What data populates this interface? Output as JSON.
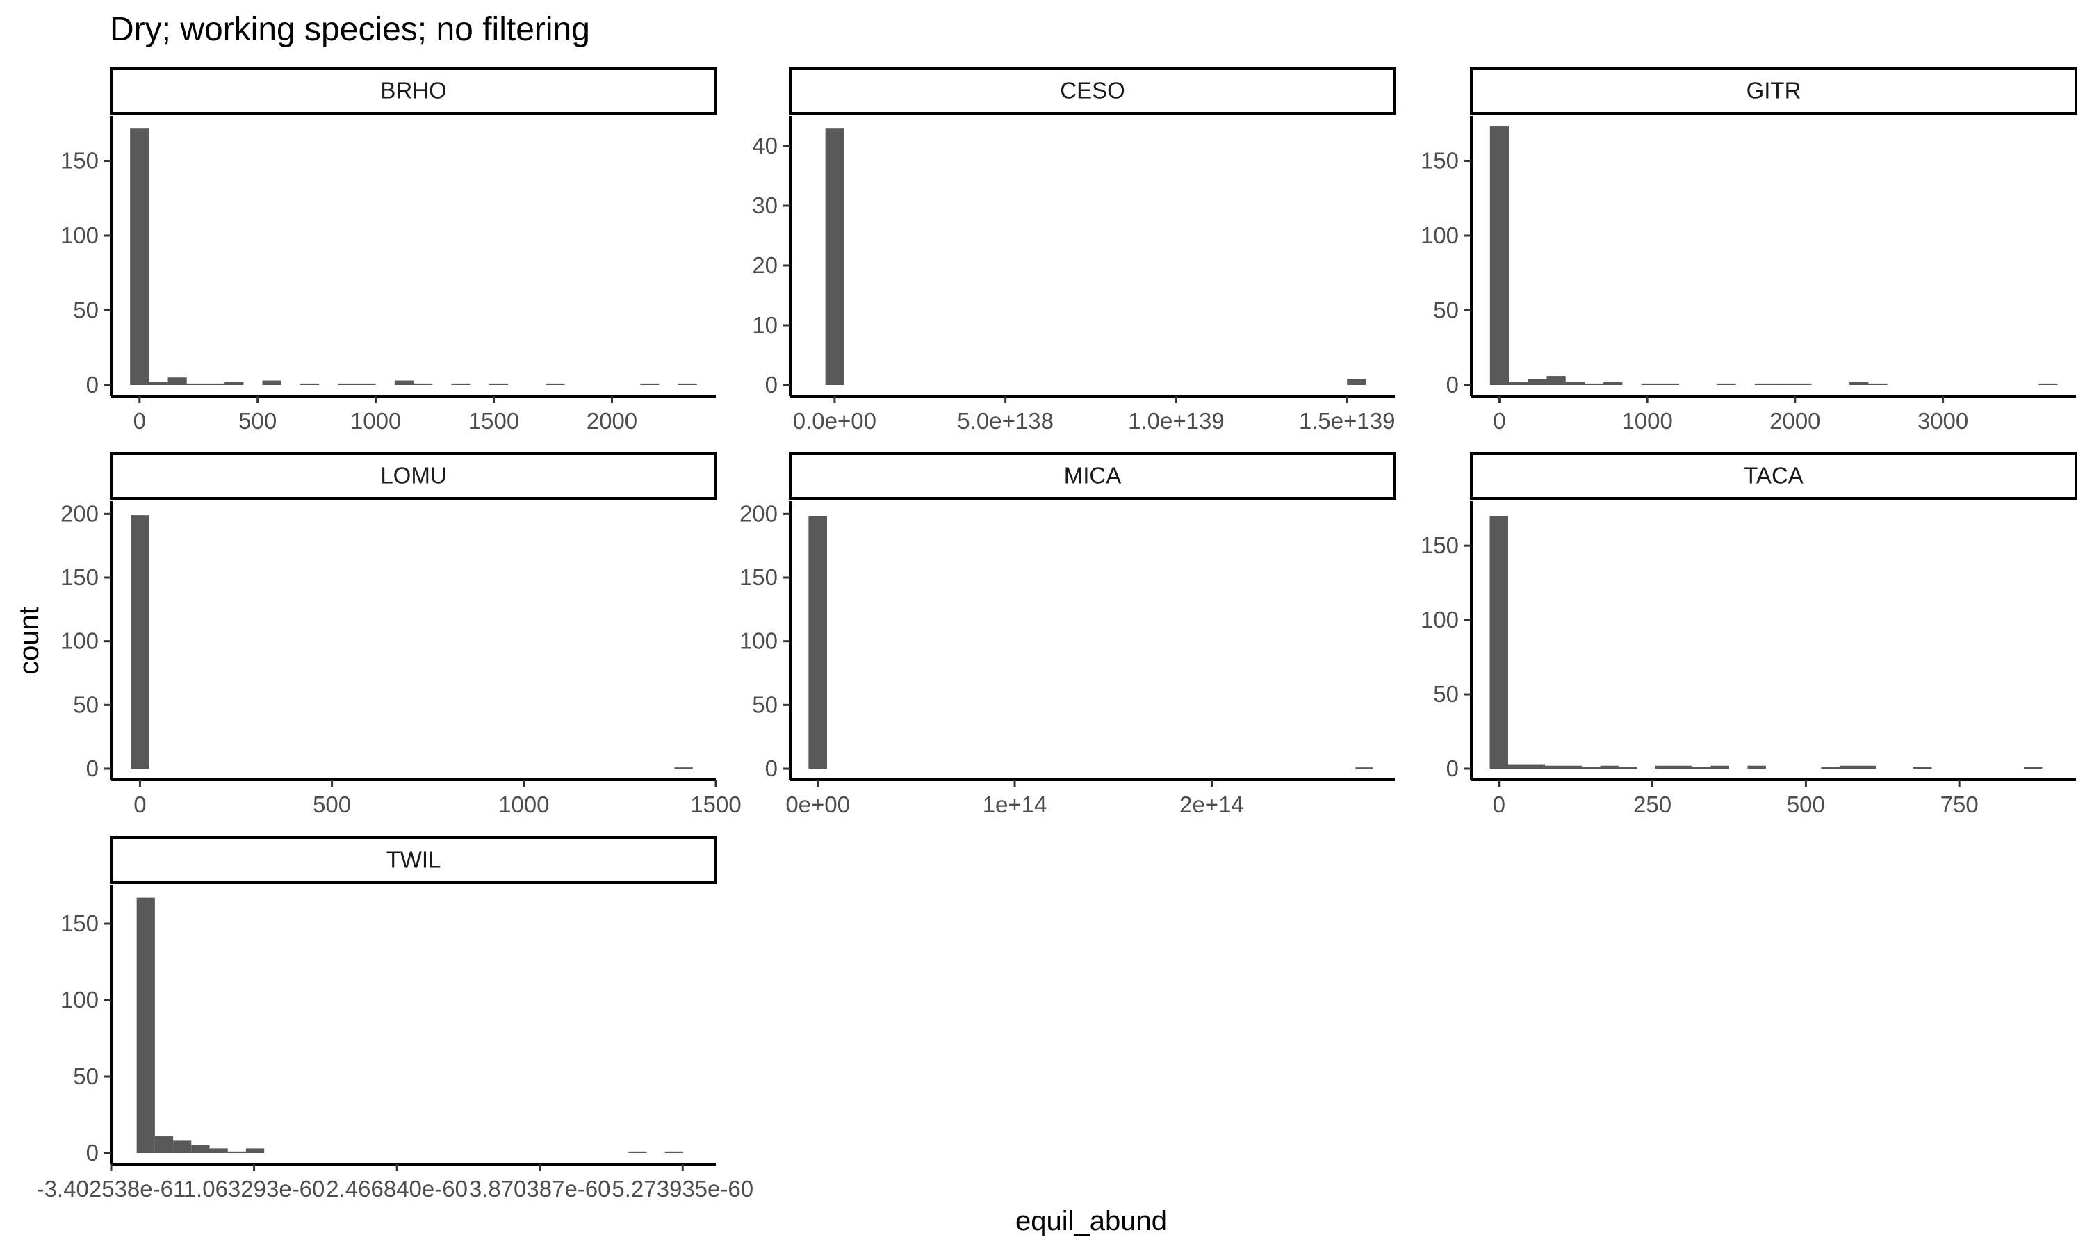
{
  "chart_data": {
    "type": "bar",
    "title": "Dry; working species; no filtering",
    "xlabel": "equil_abund",
    "ylabel": "count",
    "bar_color": "#595959",
    "panels": [
      {
        "name": "BRHO",
        "xlim": [
          -120,
          2440
        ],
        "ylim": [
          0,
          180
        ],
        "xticks": [
          {
            "value": 0,
            "label": "0"
          },
          {
            "value": 500,
            "label": "500"
          },
          {
            "value": 1000,
            "label": "1000"
          },
          {
            "value": 1500,
            "label": "1500"
          },
          {
            "value": 2000,
            "label": "2000"
          }
        ],
        "yticks": [
          {
            "value": 0,
            "label": "0"
          },
          {
            "value": 50,
            "label": "50"
          },
          {
            "value": 100,
            "label": "100"
          },
          {
            "value": 150,
            "label": "150"
          }
        ],
        "bars": [
          {
            "x0": -40,
            "x1": 40,
            "count": 172
          },
          {
            "x0": 40,
            "x1": 120,
            "count": 2
          },
          {
            "x0": 120,
            "x1": 200,
            "count": 5
          },
          {
            "x0": 200,
            "x1": 280,
            "count": 1
          },
          {
            "x0": 280,
            "x1": 360,
            "count": 1
          },
          {
            "x0": 360,
            "x1": 440,
            "count": 2
          },
          {
            "x0": 520,
            "x1": 600,
            "count": 3
          },
          {
            "x0": 680,
            "x1": 760,
            "count": 1
          },
          {
            "x0": 840,
            "x1": 920,
            "count": 1
          },
          {
            "x0": 920,
            "x1": 1000,
            "count": 1
          },
          {
            "x0": 1080,
            "x1": 1160,
            "count": 3
          },
          {
            "x0": 1160,
            "x1": 1240,
            "count": 1
          },
          {
            "x0": 1320,
            "x1": 1400,
            "count": 1
          },
          {
            "x0": 1480,
            "x1": 1560,
            "count": 1
          },
          {
            "x0": 1720,
            "x1": 1800,
            "count": 1
          },
          {
            "x0": 2120,
            "x1": 2200,
            "count": 1
          },
          {
            "x0": 2280,
            "x1": 2360,
            "count": 1
          }
        ]
      },
      {
        "name": "CESO",
        "xlim": [
          -1.3e+138,
          1.64e+139
        ],
        "ylim": [
          0,
          45
        ],
        "xticks": [
          {
            "value": 0,
            "label": "0.0e+00"
          },
          {
            "value": 5e+138,
            "label": "5.0e+138"
          },
          {
            "value": 1e+139,
            "label": "1.0e+139"
          },
          {
            "value": 1.5e+139,
            "label": "1.5e+139"
          }
        ],
        "yticks": [
          {
            "value": 0,
            "label": "0"
          },
          {
            "value": 10,
            "label": "10"
          },
          {
            "value": 20,
            "label": "20"
          },
          {
            "value": 30,
            "label": "30"
          },
          {
            "value": 40,
            "label": "40"
          }
        ],
        "bars": [
          {
            "x0": -2.7e+137,
            "x1": 2.7e+137,
            "count": 43
          },
          {
            "x0": 1.5e+139,
            "x1": 1.555e+139,
            "count": 1
          }
        ]
      },
      {
        "name": "GITR",
        "xlim": [
          -190,
          3900
        ],
        "ylim": [
          0,
          180
        ],
        "xticks": [
          {
            "value": 0,
            "label": "0"
          },
          {
            "value": 1000,
            "label": "1000"
          },
          {
            "value": 2000,
            "label": "2000"
          },
          {
            "value": 3000,
            "label": "3000"
          }
        ],
        "yticks": [
          {
            "value": 0,
            "label": "0"
          },
          {
            "value": 50,
            "label": "50"
          },
          {
            "value": 100,
            "label": "100"
          },
          {
            "value": 150,
            "label": "150"
          }
        ],
        "bars": [
          {
            "x0": -64,
            "x1": 64,
            "count": 173
          },
          {
            "x0": 64,
            "x1": 192,
            "count": 2
          },
          {
            "x0": 192,
            "x1": 320,
            "count": 4
          },
          {
            "x0": 320,
            "x1": 448,
            "count": 6
          },
          {
            "x0": 448,
            "x1": 576,
            "count": 2
          },
          {
            "x0": 576,
            "x1": 704,
            "count": 1
          },
          {
            "x0": 704,
            "x1": 832,
            "count": 2
          },
          {
            "x0": 960,
            "x1": 1088,
            "count": 1
          },
          {
            "x0": 1088,
            "x1": 1216,
            "count": 1
          },
          {
            "x0": 1472,
            "x1": 1600,
            "count": 1
          },
          {
            "x0": 1728,
            "x1": 1856,
            "count": 1
          },
          {
            "x0": 1856,
            "x1": 1984,
            "count": 1
          },
          {
            "x0": 1984,
            "x1": 2112,
            "count": 1
          },
          {
            "x0": 2368,
            "x1": 2496,
            "count": 2
          },
          {
            "x0": 2496,
            "x1": 2624,
            "count": 1
          },
          {
            "x0": 3648,
            "x1": 3776,
            "count": 1
          }
        ]
      },
      {
        "name": "LOMU",
        "xlim": [
          -75,
          1500
        ],
        "ylim": [
          0,
          210
        ],
        "xticks": [
          {
            "value": 0,
            "label": "0"
          },
          {
            "value": 500,
            "label": "500"
          },
          {
            "value": 1000,
            "label": "1000"
          },
          {
            "value": 1500,
            "label": "1500"
          }
        ],
        "yticks": [
          {
            "value": 0,
            "label": "0"
          },
          {
            "value": 50,
            "label": "50"
          },
          {
            "value": 100,
            "label": "100"
          },
          {
            "value": 150,
            "label": "150"
          },
          {
            "value": 200,
            "label": "200"
          }
        ],
        "bars": [
          {
            "x0": -24,
            "x1": 24,
            "count": 199
          },
          {
            "x0": 1392,
            "x1": 1440,
            "count": 1
          }
        ]
      },
      {
        "name": "MICA",
        "xlim": [
          -14000000000000.0,
          293000000000000.0
        ],
        "ylim": [
          0,
          210
        ],
        "xticks": [
          {
            "value": 0,
            "label": "0e+00"
          },
          {
            "value": 100000000000000.0,
            "label": "1e+14"
          },
          {
            "value": 200000000000000.0,
            "label": "2e+14"
          }
        ],
        "yticks": [
          {
            "value": 0,
            "label": "0"
          },
          {
            "value": 50,
            "label": "50"
          },
          {
            "value": 100,
            "label": "100"
          },
          {
            "value": 150,
            "label": "150"
          },
          {
            "value": 200,
            "label": "200"
          }
        ],
        "bars": [
          {
            "x0": -4700000000000.0,
            "x1": 4700000000000.0,
            "count": 198
          },
          {
            "x0": 273000000000000.0,
            "x1": 282000000000000.0,
            "count": 1
          }
        ]
      },
      {
        "name": "TACA",
        "xlim": [
          -45,
          940
        ],
        "ylim": [
          0,
          180
        ],
        "xticks": [
          {
            "value": 0,
            "label": "0"
          },
          {
            "value": 250,
            "label": "250"
          },
          {
            "value": 500,
            "label": "500"
          },
          {
            "value": 750,
            "label": "750"
          }
        ],
        "yticks": [
          {
            "value": 0,
            "label": "0"
          },
          {
            "value": 50,
            "label": "50"
          },
          {
            "value": 100,
            "label": "100"
          },
          {
            "value": 150,
            "label": "150"
          }
        ],
        "bars": [
          {
            "x0": -15,
            "x1": 15,
            "count": 170
          },
          {
            "x0": 15,
            "x1": 45,
            "count": 3
          },
          {
            "x0": 45,
            "x1": 75,
            "count": 3
          },
          {
            "x0": 75,
            "x1": 105,
            "count": 2
          },
          {
            "x0": 105,
            "x1": 135,
            "count": 2
          },
          {
            "x0": 135,
            "x1": 165,
            "count": 1
          },
          {
            "x0": 165,
            "x1": 195,
            "count": 2
          },
          {
            "x0": 195,
            "x1": 225,
            "count": 1
          },
          {
            "x0": 255,
            "x1": 285,
            "count": 2
          },
          {
            "x0": 285,
            "x1": 315,
            "count": 2
          },
          {
            "x0": 315,
            "x1": 345,
            "count": 1
          },
          {
            "x0": 345,
            "x1": 375,
            "count": 2
          },
          {
            "x0": 405,
            "x1": 435,
            "count": 2
          },
          {
            "x0": 525,
            "x1": 555,
            "count": 1
          },
          {
            "x0": 555,
            "x1": 585,
            "count": 2
          },
          {
            "x0": 585,
            "x1": 615,
            "count": 2
          },
          {
            "x0": 675,
            "x1": 705,
            "count": 1
          },
          {
            "x0": 855,
            "x1": 885,
            "count": 1
          }
        ]
      },
      {
        "name": "TWIL",
        "xlim": [
          -3.402538e-61,
          5.6e-60
        ],
        "ylim": [
          0,
          175
        ],
        "xticks": [
          {
            "value": -3.402538e-61,
            "label": "-3.402538e-61"
          },
          {
            "value": 1.063293e-60,
            "label": "1.063293e-60"
          },
          {
            "value": 2.46684e-60,
            "label": "2.466840e-60"
          },
          {
            "value": 3.870387e-60,
            "label": "3.870387e-60"
          },
          {
            "value": 5.273935e-60,
            "label": "5.273935e-60"
          }
        ],
        "yticks": [
          {
            "value": 0,
            "label": "0"
          },
          {
            "value": 50,
            "label": "50"
          },
          {
            "value": 100,
            "label": "100"
          },
          {
            "value": 150,
            "label": "150"
          }
        ],
        "bars": [
          {
            "x0": -9e-62,
            "x1": 8.9e-62,
            "count": 167
          },
          {
            "x0": 8.9e-62,
            "x1": 2.68e-61,
            "count": 11
          },
          {
            "x0": 2.68e-61,
            "x1": 4.47e-61,
            "count": 8
          },
          {
            "x0": 4.47e-61,
            "x1": 6.26e-61,
            "count": 5
          },
          {
            "x0": 6.26e-61,
            "x1": 8.05e-61,
            "count": 3
          },
          {
            "x0": 8.05e-61,
            "x1": 9.84e-61,
            "count": 1
          },
          {
            "x0": 9.84e-61,
            "x1": 1.163e-60,
            "count": 3
          },
          {
            "x0": 4.742e-60,
            "x1": 4.921e-60,
            "count": 1
          },
          {
            "x0": 5.1e-60,
            "x1": 5.279e-60,
            "count": 1
          }
        ]
      }
    ]
  }
}
